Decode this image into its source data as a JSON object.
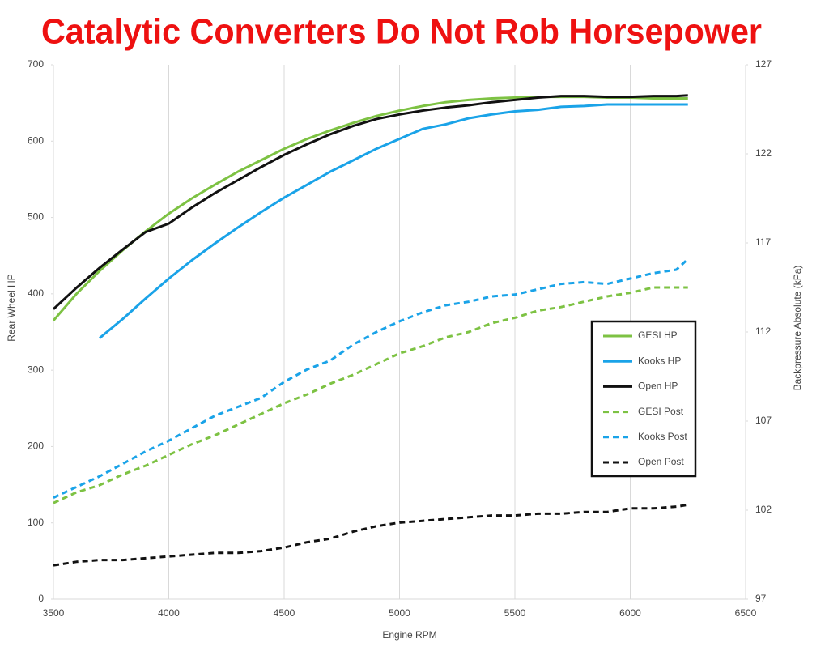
{
  "chart_data": {
    "type": "line",
    "title": "Catalytic Converters Do Not Rob Horsepower",
    "x_label": "Engine RPM",
    "y_label": "Rear Wheel HP",
    "y2_label": "Backpressure Absolute (kPa)",
    "x": [
      3500,
      3600,
      3700,
      3800,
      3900,
      4000,
      4100,
      4200,
      4300,
      4400,
      4500,
      4600,
      4700,
      4800,
      4900,
      5000,
      5100,
      5200,
      5300,
      5400,
      5500,
      5600,
      5700,
      5800,
      5900,
      6000,
      6100,
      6200,
      6250
    ],
    "xlim": [
      3500,
      6500
    ],
    "xticks": [
      3500,
      4000,
      4500,
      5000,
      5500,
      6000,
      6500
    ],
    "ylim": [
      0,
      700
    ],
    "yticks": [
      0,
      100,
      200,
      300,
      400,
      500,
      600,
      700
    ],
    "y2lim": [
      97,
      127
    ],
    "y2ticks": [
      97,
      102,
      107,
      112,
      117,
      122,
      127
    ],
    "grid": "x",
    "legend": "right",
    "series": [
      {
        "name": "GESI HP",
        "color": "#7dc243",
        "dashed": false,
        "values": [
          365,
          400,
          430,
          457,
          482,
          505,
          525,
          543,
          560,
          575,
          590,
          603,
          614,
          624,
          633,
          640,
          646,
          651,
          654,
          656,
          657,
          658,
          658,
          658,
          657,
          657,
          656,
          656,
          656
        ]
      },
      {
        "name": "Kooks HP",
        "color": "#1aa3e8",
        "dashed": false,
        "values": [
          null,
          null,
          342,
          367,
          394,
          420,
          444,
          466,
          487,
          507,
          526,
          543,
          560,
          575,
          590,
          603,
          616,
          622,
          630,
          635,
          639,
          641,
          645,
          646,
          648,
          648,
          648,
          648,
          648
        ]
      },
      {
        "name": "Open HP",
        "color": "#111111",
        "dashed": false,
        "values": [
          380,
          408,
          434,
          458,
          481,
          492,
          513,
          532,
          549,
          566,
          582,
          596,
          609,
          620,
          629,
          635,
          640,
          644,
          647,
          651,
          654,
          657,
          659,
          659,
          658,
          658,
          659,
          659,
          660
        ]
      },
      {
        "name": "GESI Post",
        "color": "#7dc243",
        "dashed": true,
        "axis": "y2",
        "values": [
          102.4,
          103.0,
          103.4,
          104.0,
          104.5,
          105.1,
          105.7,
          106.2,
          106.8,
          107.4,
          108.0,
          108.5,
          109.1,
          109.6,
          110.2,
          110.8,
          111.2,
          111.7,
          112.0,
          112.5,
          112.8,
          113.2,
          113.4,
          113.7,
          114.0,
          114.2,
          114.5,
          114.5,
          114.5
        ]
      },
      {
        "name": "Kooks Post",
        "color": "#1aa3e8",
        "dashed": true,
        "axis": "y2",
        "values": [
          102.7,
          103.3,
          103.9,
          104.6,
          105.3,
          105.9,
          106.6,
          107.3,
          107.8,
          108.3,
          109.2,
          109.9,
          110.4,
          111.3,
          112.0,
          112.6,
          113.1,
          113.5,
          113.7,
          114.0,
          114.1,
          114.4,
          114.7,
          114.8,
          114.7,
          115.0,
          115.3,
          115.5,
          116.1
        ]
      },
      {
        "name": "Open Post",
        "color": "#111111",
        "dashed": true,
        "axis": "y2",
        "values": [
          98.9,
          99.1,
          99.2,
          99.2,
          99.3,
          99.4,
          99.5,
          99.6,
          99.6,
          99.7,
          99.9,
          100.2,
          100.4,
          100.8,
          101.1,
          101.3,
          101.4,
          101.5,
          101.6,
          101.7,
          101.7,
          101.8,
          101.8,
          101.9,
          101.9,
          102.1,
          102.1,
          102.2,
          102.3
        ]
      }
    ]
  }
}
